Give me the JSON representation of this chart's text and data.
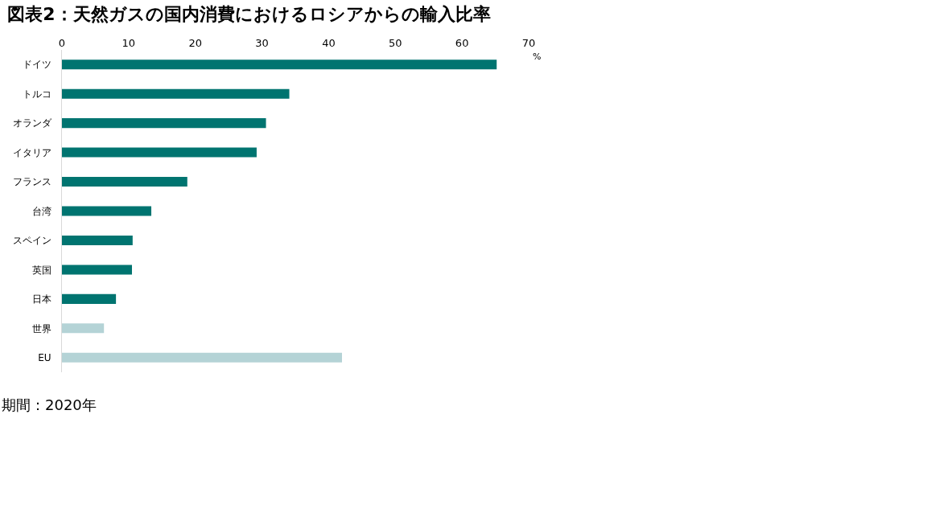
{
  "chart_data": {
    "type": "bar",
    "orientation": "horizontal",
    "title": "図表2：天然ガスの国内消費におけるロシアからの輸入比率",
    "categories": [
      "ドイツ",
      "トルコ",
      "オランダ",
      "イタリア",
      "フランス",
      "台湾",
      "スペイン",
      "英国",
      "日本",
      "世界",
      "EU"
    ],
    "values": [
      65.2,
      34.1,
      30.6,
      29.2,
      18.8,
      13.4,
      10.6,
      10.5,
      8.1,
      6.3,
      42.0
    ],
    "colors": [
      "#007470",
      "#007470",
      "#007470",
      "#007470",
      "#007470",
      "#007470",
      "#007470",
      "#007470",
      "#007470",
      "#b4d3d6",
      "#b4d3d6"
    ],
    "xlim": [
      0,
      70
    ],
    "xticks": [
      0,
      10,
      20,
      30,
      40,
      50,
      60,
      70
    ],
    "grid": false,
    "annotations": [
      "%",
      "期間：2020年"
    ]
  }
}
